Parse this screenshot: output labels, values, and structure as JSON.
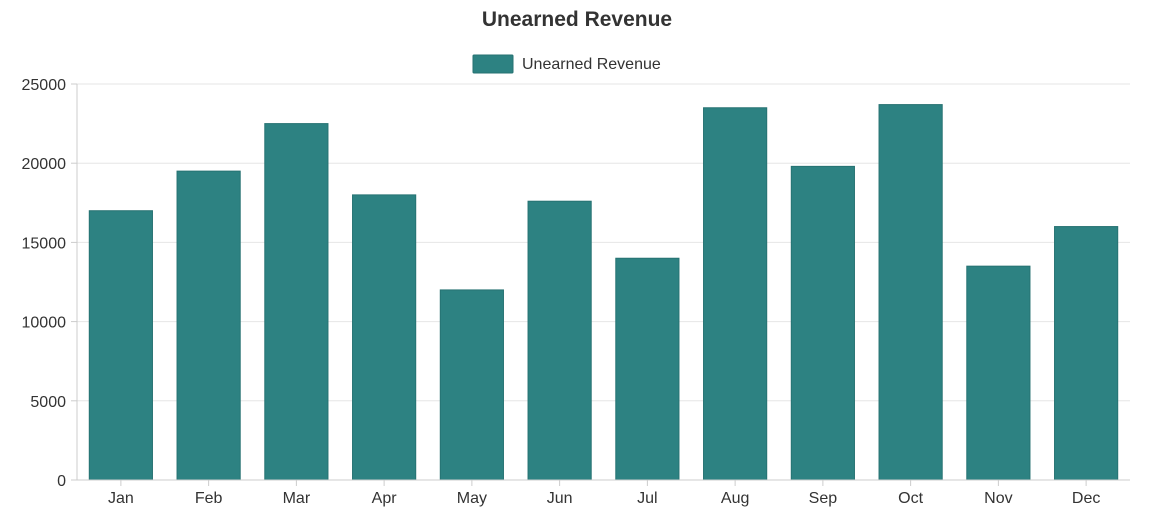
{
  "chart_data": {
    "type": "bar",
    "title": "Unearned Revenue",
    "xlabel": "",
    "ylabel": "",
    "categories": [
      "Jan",
      "Feb",
      "Mar",
      "Apr",
      "May",
      "Jun",
      "Jul",
      "Aug",
      "Sep",
      "Oct",
      "Nov",
      "Dec"
    ],
    "series": [
      {
        "name": "Unearned Revenue",
        "color": "#2d8282",
        "values": [
          17000,
          19500,
          22500,
          18000,
          12000,
          17600,
          14000,
          23500,
          19800,
          23700,
          13500,
          16000
        ]
      }
    ],
    "ylim": [
      0,
      25000
    ],
    "yticks": [
      "0",
      "5000",
      "10000",
      "15000",
      "20000",
      "25000"
    ],
    "grid": true,
    "legend_position": "top-center"
  }
}
